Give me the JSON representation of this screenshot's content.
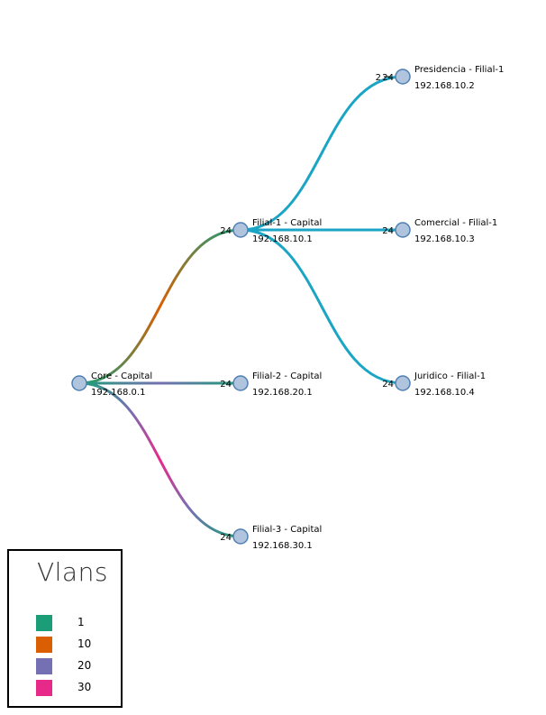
{
  "diagram": {
    "nodes": [
      {
        "id": "core",
        "name": "Core - Capital",
        "ip": "192.168.0.1"
      },
      {
        "id": "f1",
        "name": "Filial-1 - Capital",
        "ip": "192.168.10.1"
      },
      {
        "id": "f2",
        "name": "Filial-2 - Capital",
        "ip": "192.168.20.1"
      },
      {
        "id": "f3",
        "name": "Filial-3 - Capital",
        "ip": "192.168.30.1"
      },
      {
        "id": "pres",
        "name": "Presidencia - Filial-1",
        "ip": "192.168.10.2"
      },
      {
        "id": "com",
        "name": "Comercial - Filial-1",
        "ip": "192.168.10.3"
      },
      {
        "id": "jur",
        "name": "Juridico - Filial-1",
        "ip": "192.168.10.4"
      }
    ],
    "links": [
      {
        "source": "core",
        "target": "f1",
        "port": "24",
        "vlans": [
          "1",
          "10"
        ]
      },
      {
        "source": "core",
        "target": "f2",
        "port": "24",
        "vlans": [
          "1",
          "20"
        ]
      },
      {
        "source": "core",
        "target": "f3",
        "port": "24",
        "vlans": [
          "1",
          "20",
          "30"
        ]
      },
      {
        "source": "f1",
        "target": "pres",
        "port": "24",
        "source_port": "2",
        "vlans": []
      },
      {
        "source": "f1",
        "target": "com",
        "port": "24",
        "vlans": []
      },
      {
        "source": "f1",
        "target": "jur",
        "port": "24",
        "vlans": []
      }
    ],
    "default_link_color": "#1aa5c4"
  },
  "legend": {
    "title": "Vlans",
    "items": [
      {
        "label": "1",
        "color": "#1b9e77"
      },
      {
        "label": "10",
        "color": "#d95f02"
      },
      {
        "label": "20",
        "color": "#7570b3"
      },
      {
        "label": "30",
        "color": "#e7298a"
      }
    ]
  }
}
